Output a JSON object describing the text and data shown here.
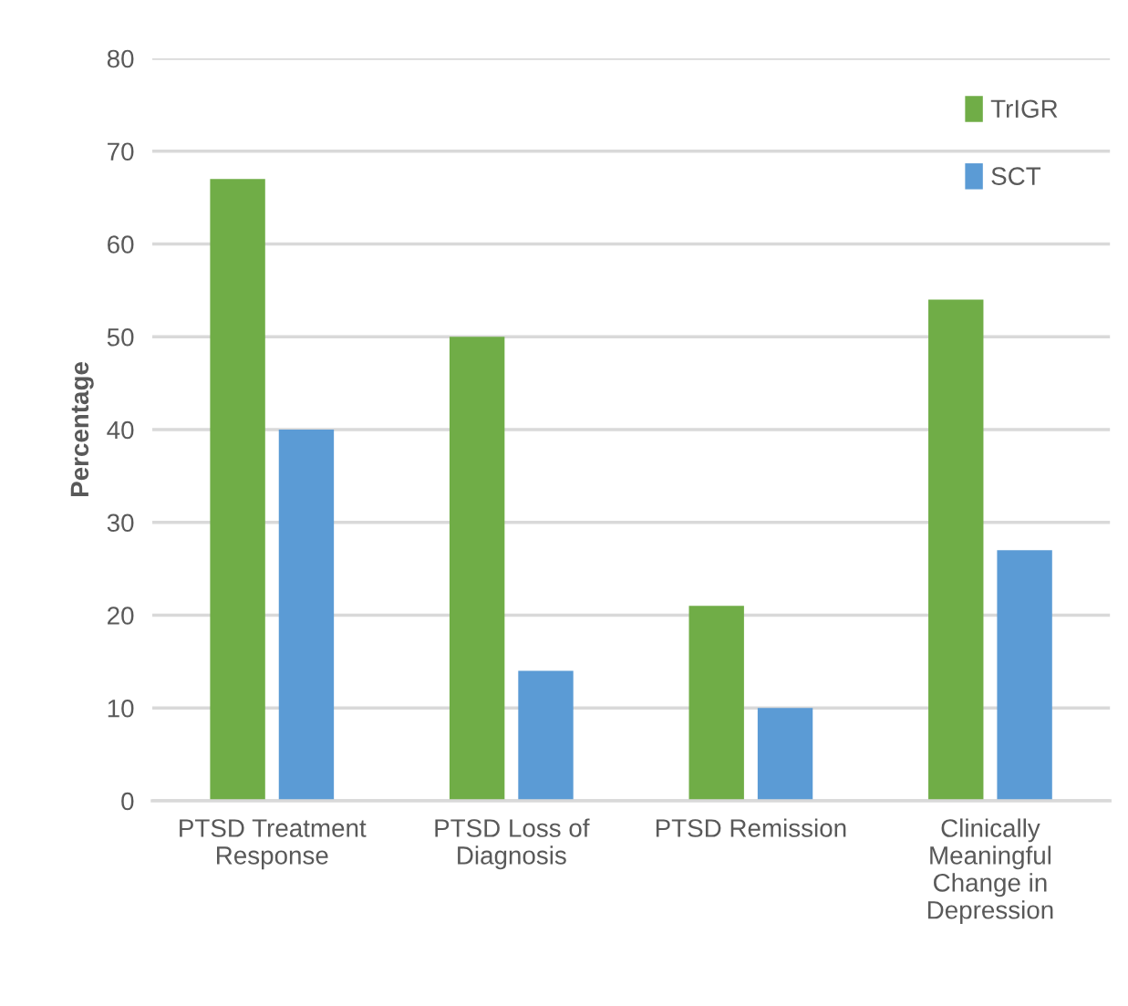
{
  "chart_data": {
    "type": "bar",
    "ylabel": "Percentage",
    "categories": [
      "PTSD Treatment Response",
      "PTSD Loss of Diagnosis",
      "PTSD Remission",
      "Clinically Meaningful Change in Depression"
    ],
    "series": [
      {
        "name": "TrIGR",
        "color": "#70ad47",
        "values": [
          67,
          50,
          21,
          54
        ]
      },
      {
        "name": "SCT",
        "color": "#5b9bd5",
        "values": [
          40,
          14,
          10,
          27
        ]
      }
    ],
    "ylim": [
      0,
      80
    ],
    "yticks": [
      0,
      10,
      20,
      30,
      40,
      50,
      60,
      70,
      80
    ],
    "grid": "y",
    "legend": "top right"
  }
}
